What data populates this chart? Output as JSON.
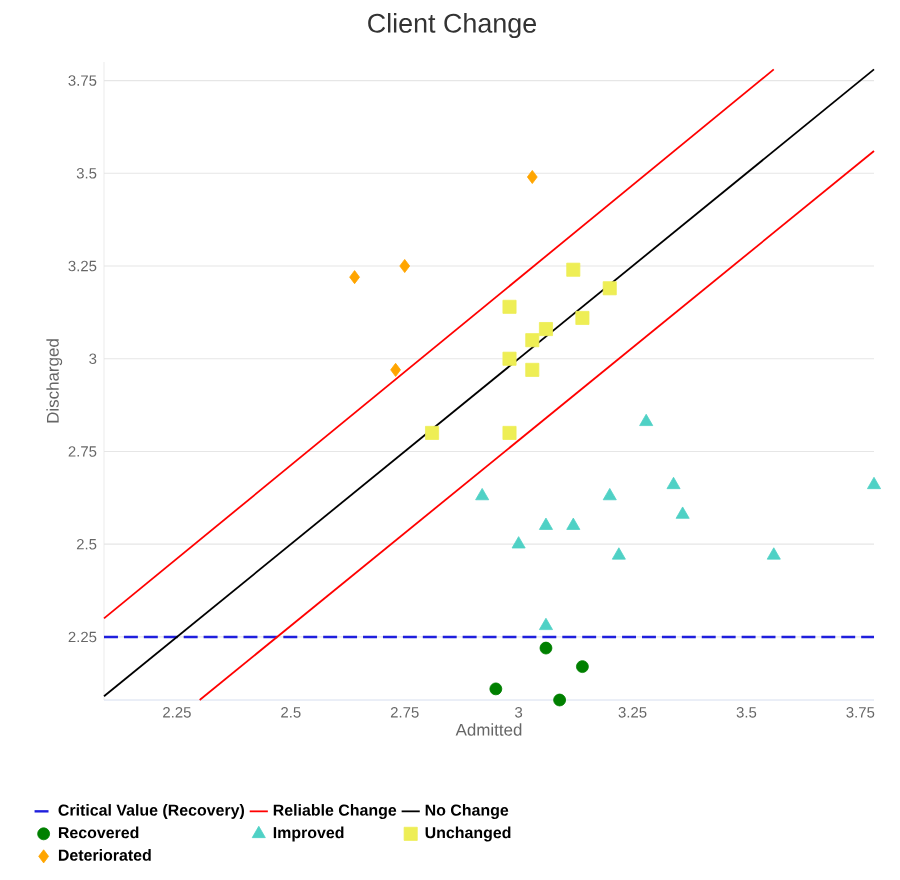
{
  "chart_data": {
    "type": "scatter",
    "title": "Client Change",
    "xlabel": "Admitted",
    "ylabel": "Discharged",
    "xlim": [
      2.09,
      3.78
    ],
    "ylim": [
      2.08,
      3.8
    ],
    "xticks": [
      2.25,
      2.5,
      2.75,
      3,
      3.25,
      3.5,
      3.75
    ],
    "yticks": [
      2.25,
      2.5,
      2.75,
      3,
      3.25,
      3.5,
      3.75
    ],
    "grid": "y",
    "legend": "bottom",
    "ref_lines": [
      {
        "axis": "y",
        "value": 2.25,
        "label": "Critical Value (Recovery)",
        "color": "#1f1fdd",
        "line_style": "dashed"
      }
    ],
    "series": [
      {
        "name": "Reliable Change",
        "type": "line",
        "color": "#ff0000",
        "marker": "none",
        "x": [
          2.09,
          3.56
        ],
        "values": [
          2.3,
          3.78
        ]
      },
      {
        "type": "line",
        "color": "#ff0000",
        "marker": "none",
        "x": [
          2.3,
          3.78
        ],
        "values": [
          2.08,
          3.56
        ]
      },
      {
        "name": "No Change",
        "type": "line",
        "color": "#000000",
        "marker": "none",
        "x": [
          2.09,
          3.78
        ],
        "values": [
          2.09,
          3.78
        ]
      },
      {
        "name": "Recovered",
        "color": "#008000",
        "marker": "circle",
        "x": [
          3.06,
          3.14,
          2.95,
          3.09
        ],
        "values": [
          2.22,
          2.17,
          2.11,
          2.08
        ]
      },
      {
        "name": "Improved",
        "color": "#4fd1c5",
        "marker": "triangle",
        "x": [
          3.28,
          2.92,
          3.34,
          3.78,
          3.2,
          3.06,
          3.12,
          3.36,
          3.0,
          3.22,
          3.56,
          3.06
        ],
        "values": [
          2.83,
          2.63,
          2.66,
          2.66,
          2.63,
          2.55,
          2.55,
          2.58,
          2.5,
          2.47,
          2.47,
          2.28
        ]
      },
      {
        "name": "Unchanged",
        "color": "#eeee55",
        "marker": "square",
        "x": [
          2.98,
          3.12,
          3.2,
          3.06,
          3.03,
          3.14,
          2.98,
          3.03,
          2.98,
          2.81
        ],
        "values": [
          3.14,
          3.24,
          3.19,
          3.08,
          3.05,
          3.11,
          3.0,
          2.97,
          2.8,
          2.8
        ]
      },
      {
        "name": "Deteriorated",
        "color": "#ffa500",
        "marker": "diamond",
        "x": [
          2.64,
          2.75,
          2.73,
          3.03
        ],
        "values": [
          3.22,
          3.25,
          2.97,
          3.49
        ]
      }
    ]
  }
}
